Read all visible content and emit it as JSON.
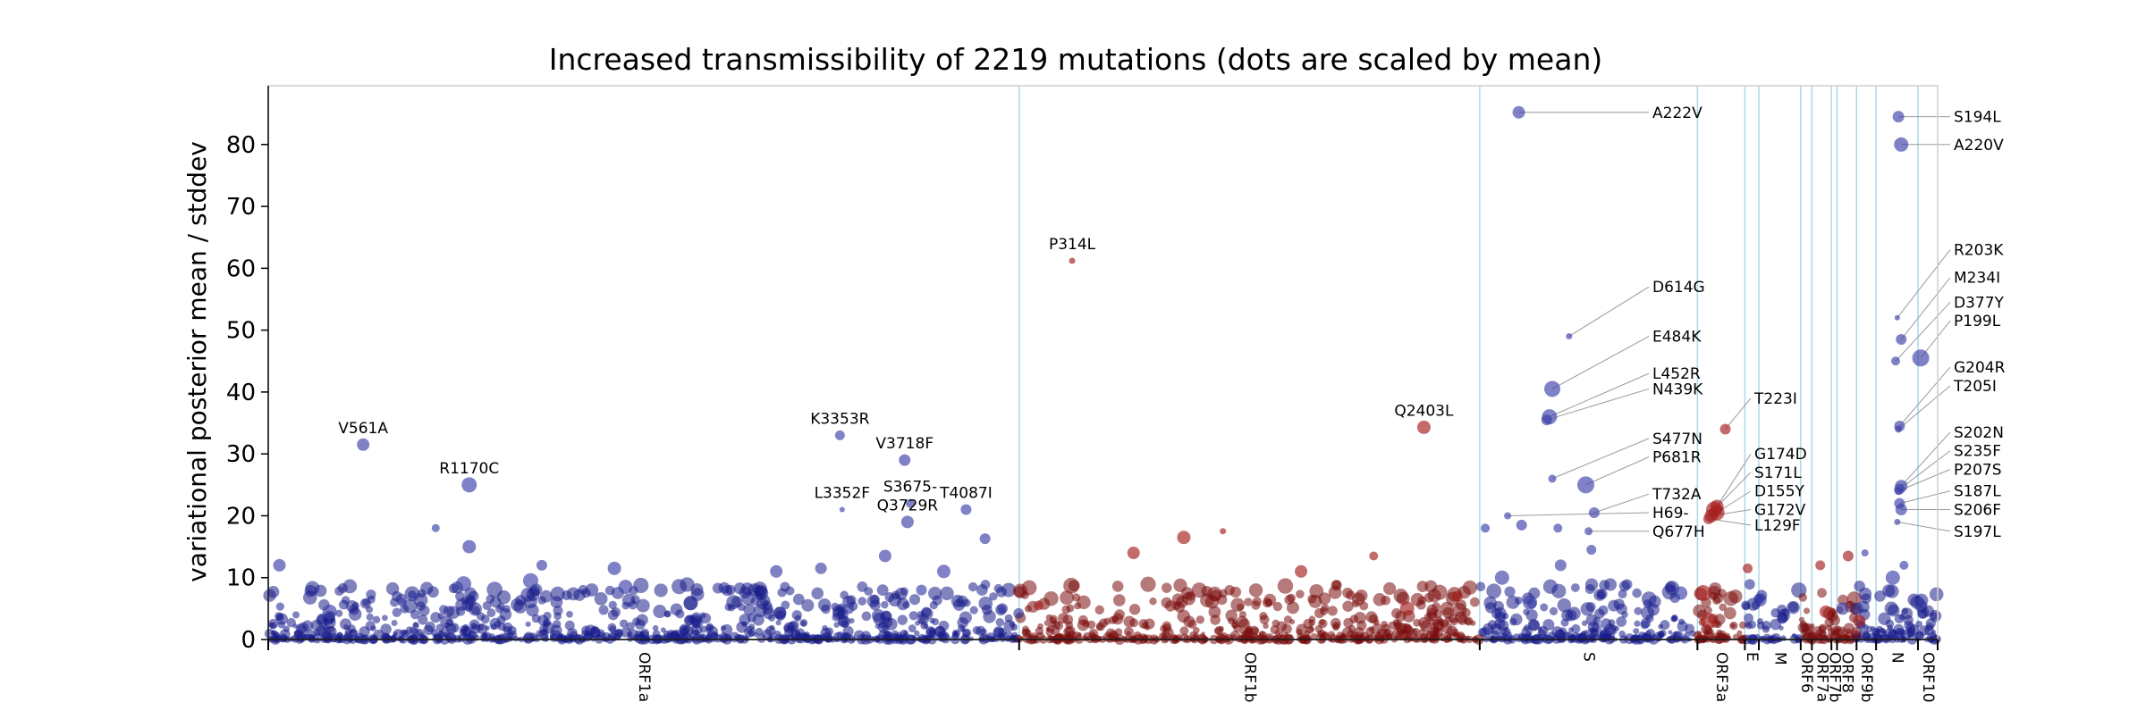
{
  "chart_data": {
    "type": "scatter",
    "title": "Increased transmissibility of 2219 mutations (dots are scaled by mean)",
    "xlabel": "",
    "ylabel": "variational posterior mean / stddev",
    "xlim": [
      0,
      29903
    ],
    "ylim": [
      0,
      89.5
    ],
    "yticks": [
      0,
      10,
      20,
      30,
      40,
      50,
      60,
      70,
      80
    ],
    "grid": false,
    "colors": {
      "blue": "#3b3fa8",
      "red": "#a51c1c",
      "dark_blue": "#1a1d8a",
      "dark_red": "#7a0c0c",
      "gene_line": "#add8e6",
      "leader": "#9a9a9a"
    },
    "genes": [
      {
        "name": "ORF1a",
        "start": 0,
        "end": 13450
      },
      {
        "name": "ORF1b",
        "start": 13450,
        "end": 21700
      },
      {
        "name": "S",
        "start": 21700,
        "end": 25600
      },
      {
        "name": "ORF3a",
        "start": 25600,
        "end": 26450
      },
      {
        "name": "E",
        "start": 26450,
        "end": 26700
      },
      {
        "name": "M",
        "start": 26700,
        "end": 27450
      },
      {
        "name": "ORF6",
        "start": 27450,
        "end": 27650
      },
      {
        "name": "ORF7a",
        "start": 27650,
        "end": 28000
      },
      {
        "name": "ORF7b",
        "start": 28000,
        "end": 28100
      },
      {
        "name": "ORF8",
        "start": 28100,
        "end": 28450
      },
      {
        "name": "ORF9b",
        "start": 28450,
        "end": 28800
      },
      {
        "name": "N",
        "start": 28800,
        "end": 29550
      },
      {
        "name": "ORF10",
        "start": 29550,
        "end": 29903
      }
    ],
    "series": [
      {
        "color": "#3b3fa8",
        "points": [
          {
            "x": 1700,
            "y": 31.5,
            "size": 14,
            "label": "V561A"
          },
          {
            "x": 3600,
            "y": 25,
            "size": 17,
            "label": "R1170C"
          },
          {
            "x": 10240,
            "y": 33,
            "size": 11,
            "label": "K3353R"
          },
          {
            "x": 10280,
            "y": 21,
            "size": 6,
            "label": "L3352F"
          },
          {
            "x": 11400,
            "y": 29,
            "size": 13,
            "label": "V3718F"
          },
          {
            "x": 11500,
            "y": 22,
            "size": 10,
            "label": "S3675-"
          },
          {
            "x": 11450,
            "y": 19,
            "size": 14,
            "label": "Q3729R"
          },
          {
            "x": 12500,
            "y": 21,
            "size": 12,
            "label": "T4087I"
          },
          {
            "x": 200,
            "y": 12,
            "size": 14
          },
          {
            "x": 1100,
            "y": 4.5,
            "size": 16
          },
          {
            "x": 2400,
            "y": 6,
            "size": 10
          },
          {
            "x": 3000,
            "y": 18,
            "size": 9
          },
          {
            "x": 3600,
            "y": 15,
            "size": 15
          },
          {
            "x": 3500,
            "y": 9,
            "size": 17
          },
          {
            "x": 4700,
            "y": 9.5,
            "size": 17
          },
          {
            "x": 4900,
            "y": 12,
            "size": 12
          },
          {
            "x": 6200,
            "y": 11.5,
            "size": 15
          },
          {
            "x": 6400,
            "y": 8.5,
            "size": 16
          },
          {
            "x": 9100,
            "y": 11,
            "size": 14
          },
          {
            "x": 9900,
            "y": 11.5,
            "size": 13
          },
          {
            "x": 10400,
            "y": 5,
            "size": 12
          },
          {
            "x": 11050,
            "y": 13.5,
            "size": 14
          },
          {
            "x": 11700,
            "y": 8,
            "size": 12
          },
          {
            "x": 12100,
            "y": 11,
            "size": 15
          },
          {
            "x": 12840,
            "y": 16.3,
            "size": 12
          },
          {
            "x": 13150,
            "y": 5,
            "size": 12
          },
          {
            "x": 22400,
            "y": 85.2,
            "size": 14,
            "label": "A222V"
          },
          {
            "x": 23300,
            "y": 49,
            "size": 7,
            "label": "D614G"
          },
          {
            "x": 23000,
            "y": 40.5,
            "size": 18,
            "label": "E484K"
          },
          {
            "x": 22950,
            "y": 36,
            "size": 17,
            "label": "L452R"
          },
          {
            "x": 22900,
            "y": 35.5,
            "size": 12,
            "label": "N439K"
          },
          {
            "x": 23000,
            "y": 26,
            "size": 9,
            "label": "S477N"
          },
          {
            "x": 23600,
            "y": 25,
            "size": 19,
            "label": "P681R"
          },
          {
            "x": 23750,
            "y": 20.5,
            "size": 12,
            "label": "T732A"
          },
          {
            "x": 22200,
            "y": 20,
            "size": 8,
            "label": "H69-"
          },
          {
            "x": 23650,
            "y": 17.5,
            "size": 9,
            "label": "Q677H"
          },
          {
            "x": 21800,
            "y": 18,
            "size": 10
          },
          {
            "x": 22450,
            "y": 18.5,
            "size": 12
          },
          {
            "x": 22100,
            "y": 10,
            "size": 16
          },
          {
            "x": 22600,
            "y": 6,
            "size": 16
          },
          {
            "x": 23150,
            "y": 12,
            "size": 13
          },
          {
            "x": 23100,
            "y": 18,
            "size": 10
          },
          {
            "x": 23700,
            "y": 14.5,
            "size": 11
          },
          {
            "x": 25300,
            "y": 7.5,
            "size": 15
          },
          {
            "x": 29200,
            "y": 84.5,
            "size": 13,
            "label": "S194L"
          },
          {
            "x": 29250,
            "y": 80,
            "size": 16,
            "label": "A220V"
          },
          {
            "x": 29180,
            "y": 52,
            "size": 6,
            "label": "R203K"
          },
          {
            "x": 29250,
            "y": 48.5,
            "size": 12,
            "label": "M234I"
          },
          {
            "x": 29150,
            "y": 45,
            "size": 10,
            "label": "D377Y"
          },
          {
            "x": 29600,
            "y": 45.5,
            "size": 19,
            "label": "P199L"
          },
          {
            "x": 29220,
            "y": 34.5,
            "size": 12,
            "label": "G204R"
          },
          {
            "x": 29200,
            "y": 34,
            "size": 8,
            "label": "T205I"
          },
          {
            "x": 29250,
            "y": 24.8,
            "size": 14,
            "label": "S202N"
          },
          {
            "x": 29220,
            "y": 24.3,
            "size": 12,
            "label": "S235F"
          },
          {
            "x": 29200,
            "y": 24,
            "size": 9,
            "label": "P207S"
          },
          {
            "x": 29220,
            "y": 22,
            "size": 12,
            "label": "S187L"
          },
          {
            "x": 29250,
            "y": 21,
            "size": 13,
            "label": "S206F"
          },
          {
            "x": 29180,
            "y": 19,
            "size": 7,
            "label": "S197L"
          },
          {
            "x": 29100,
            "y": 10,
            "size": 16
          },
          {
            "x": 29300,
            "y": 12,
            "size": 10
          },
          {
            "x": 29600,
            "y": 6,
            "size": 10
          },
          {
            "x": 26700,
            "y": 6.5,
            "size": 12
          },
          {
            "x": 28200,
            "y": 5,
            "size": 14
          },
          {
            "x": 28600,
            "y": 14,
            "size": 8
          }
        ]
      },
      {
        "color": "#a51c1c",
        "points": [
          {
            "x": 14400,
            "y": 61.2,
            "size": 7,
            "label": "P314L"
          },
          {
            "x": 20700,
            "y": 34.3,
            "size": 15,
            "label": "Q2403L"
          },
          {
            "x": 26100,
            "y": 34,
            "size": 12,
            "label": "T223I"
          },
          {
            "x": 25950,
            "y": 21.5,
            "size": 15,
            "label": "G174D"
          },
          {
            "x": 25900,
            "y": 21,
            "size": 18,
            "label": "S171L"
          },
          {
            "x": 25950,
            "y": 20.5,
            "size": 17,
            "label": "D155Y"
          },
          {
            "x": 25850,
            "y": 20,
            "size": 15,
            "label": "G172V"
          },
          {
            "x": 25800,
            "y": 19.5,
            "size": 12,
            "label": "L129F"
          },
          {
            "x": 16400,
            "y": 16.5,
            "size": 15
          },
          {
            "x": 15500,
            "y": 14,
            "size": 14
          },
          {
            "x": 18500,
            "y": 11,
            "size": 14
          },
          {
            "x": 19800,
            "y": 13.5,
            "size": 10
          },
          {
            "x": 20400,
            "y": 5,
            "size": 16
          },
          {
            "x": 21300,
            "y": 7,
            "size": 12
          },
          {
            "x": 25700,
            "y": 7.5,
            "size": 18
          },
          {
            "x": 25800,
            "y": 3,
            "size": 18
          },
          {
            "x": 26500,
            "y": 11.5,
            "size": 11
          },
          {
            "x": 27800,
            "y": 12,
            "size": 11
          },
          {
            "x": 28300,
            "y": 13.5,
            "size": 12
          },
          {
            "x": 27900,
            "y": 4.5,
            "size": 14
          },
          {
            "x": 28500,
            "y": 3,
            "size": 14
          },
          {
            "x": 17100,
            "y": 17.5,
            "size": 7
          },
          {
            "x": 13800,
            "y": 5.5,
            "size": 11
          }
        ]
      }
    ]
  }
}
